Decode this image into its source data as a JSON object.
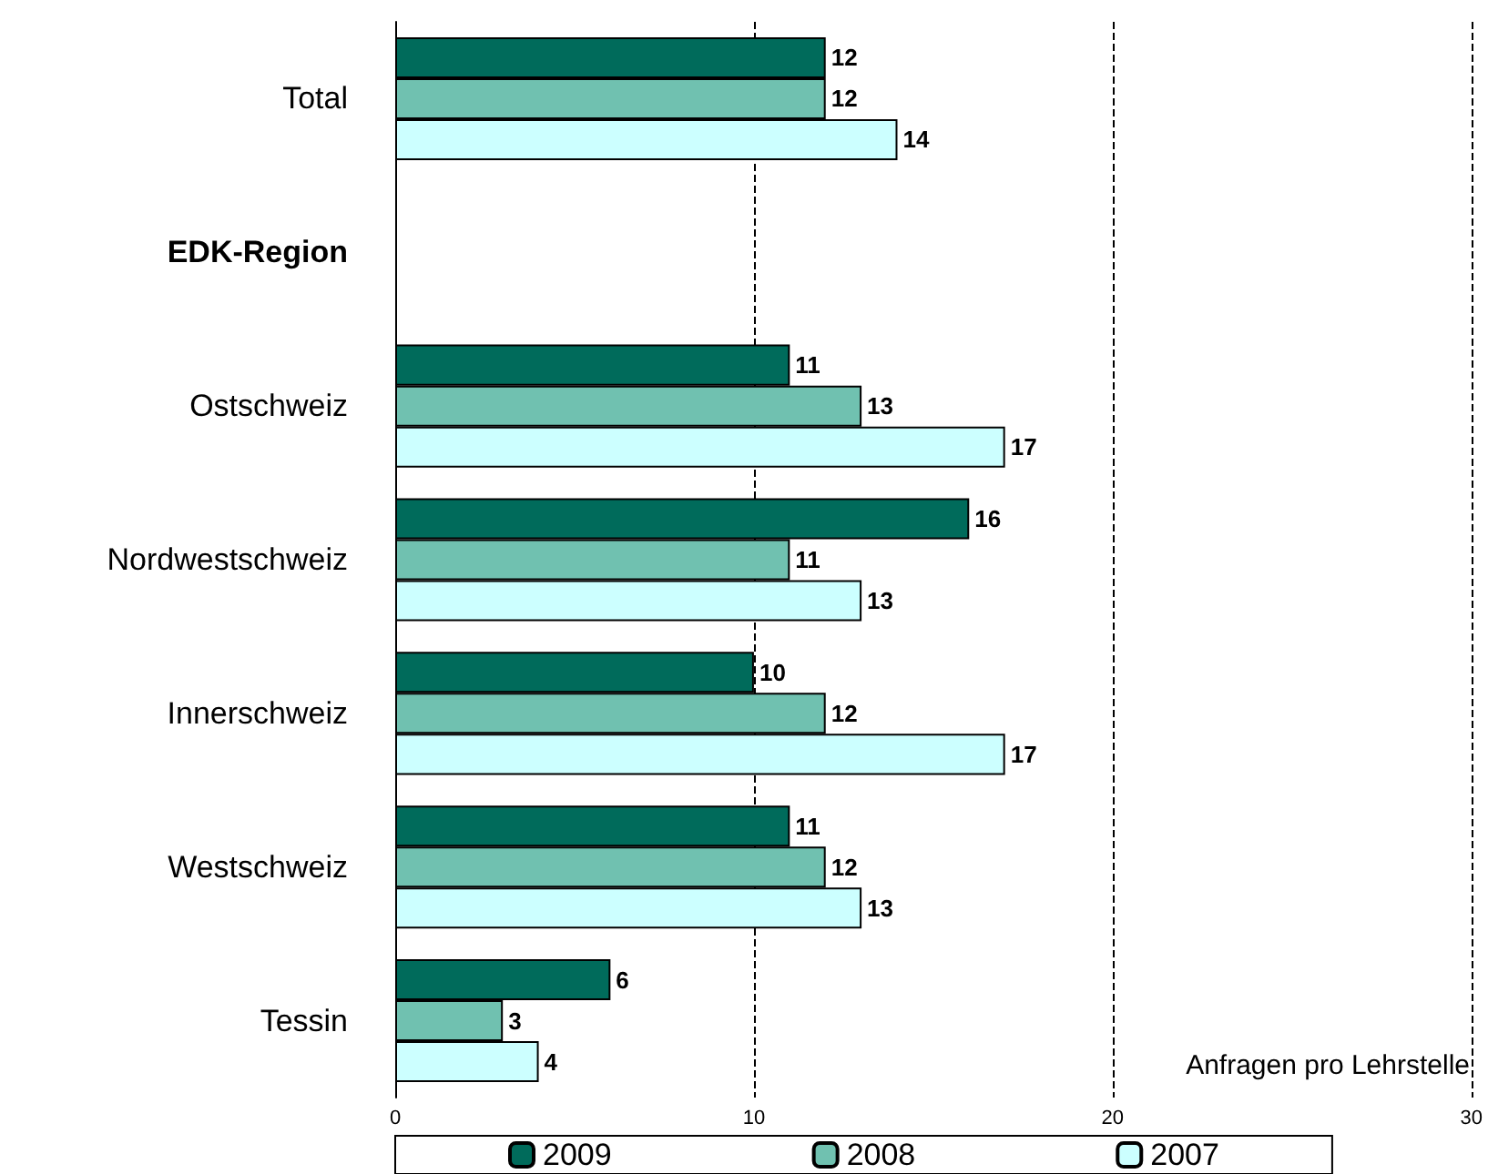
{
  "chart_data": {
    "type": "bar",
    "orientation": "horizontal",
    "categories": [
      "Total",
      "EDK-Region",
      "Ostschweiz",
      "Nordwestschweiz",
      "Innerschweiz",
      "Westschweiz",
      "Tessin"
    ],
    "series": [
      {
        "name": "2009",
        "color": "#006b5b",
        "values": [
          12,
          null,
          11,
          16,
          10,
          11,
          6
        ]
      },
      {
        "name": "2008",
        "color": "#70c1b0",
        "values": [
          12,
          null,
          13,
          11,
          12,
          12,
          3
        ]
      },
      {
        "name": "2007",
        "color": "#ccffff",
        "values": [
          14,
          null,
          17,
          13,
          17,
          13,
          4
        ]
      }
    ],
    "xlim": [
      0,
      30
    ],
    "xticks": [
      0,
      10,
      20,
      30
    ],
    "grid": "x",
    "data_labels": true,
    "legend": "bottom",
    "annotations": [
      "Anfragen pro Lehrstelle"
    ]
  }
}
